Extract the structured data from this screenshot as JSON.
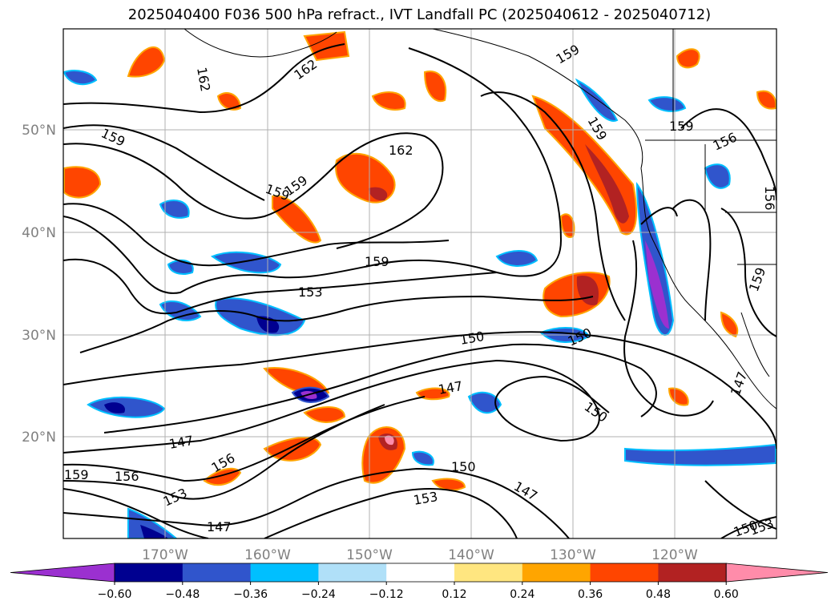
{
  "title": "2025040400 F036 500 hPa refract., IVT Landfall PC (2025040612 - 2025040712)",
  "map": {
    "lon_ticks": [
      "170°W",
      "160°W",
      "150°W",
      "140°W",
      "130°W",
      "120°W"
    ],
    "lat_ticks": [
      "50°N",
      "40°N",
      "30°N",
      "20°N"
    ],
    "contour_labels": [
      "162",
      "162",
      "159",
      "162",
      "159",
      "159",
      "159",
      "156",
      "156",
      "159",
      "159",
      "153",
      "150",
      "150",
      "150",
      "147",
      "147",
      "147",
      "156",
      "159",
      "156",
      "153",
      "150",
      "153",
      "147",
      "147",
      "150",
      "153"
    ]
  },
  "colorbar": {
    "tick_labels": [
      "−0.60",
      "−0.48",
      "−0.36",
      "−0.24",
      "−0.12",
      "0.12",
      "0.24",
      "0.36",
      "0.48",
      "0.60"
    ],
    "colors": [
      "#9b30d0",
      "#000090",
      "#3055cc",
      "#00bfff",
      "#b0e0f8",
      "#ffffff",
      "#ffe680",
      "#ffa500",
      "#ff4500",
      "#b22222",
      "#ff8caa"
    ]
  }
}
